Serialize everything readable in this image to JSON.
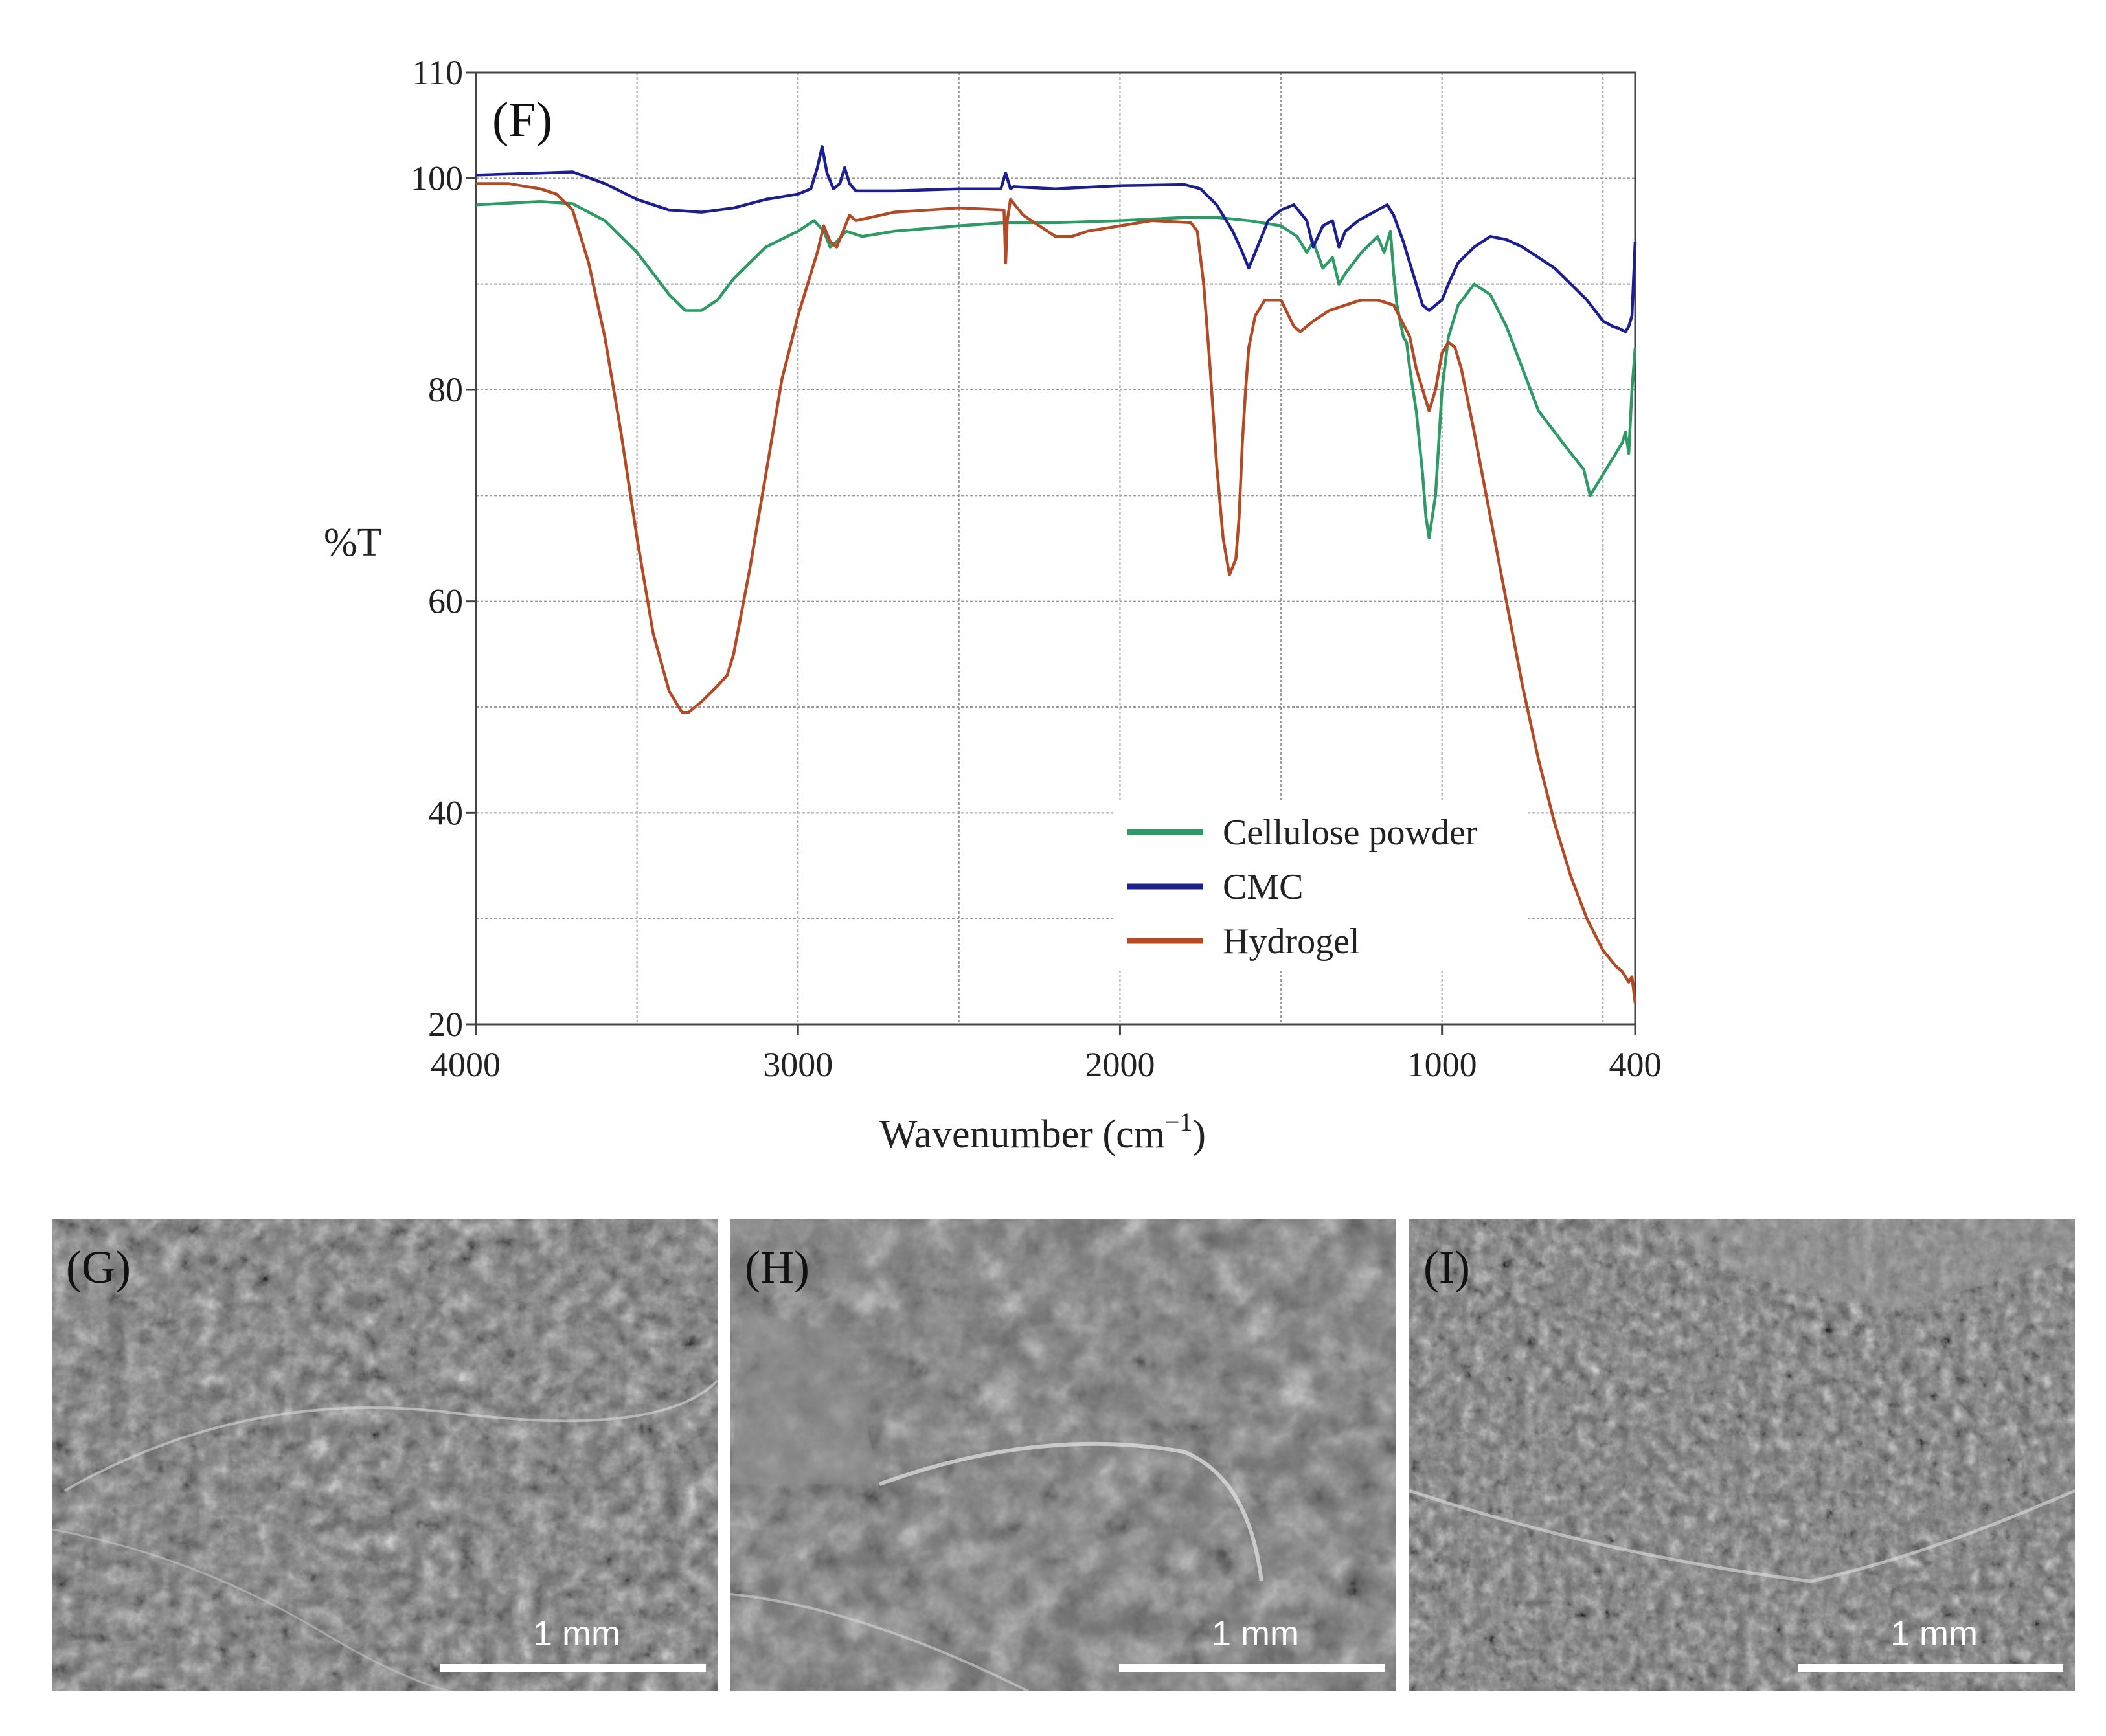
{
  "chart_data": {
    "type": "line",
    "panel_label": "(F)",
    "xlabel": "Wavenumber (cm",
    "xlabel_sup": "−1",
    "xlabel_close": ")",
    "ylabel": "%T",
    "xlim": [
      4000,
      400
    ],
    "ylim": [
      20,
      110
    ],
    "x_ticks": [
      4000,
      3000,
      2000,
      1000,
      400
    ],
    "y_ticks": [
      20,
      40,
      60,
      80,
      100,
      110
    ],
    "grid": true,
    "legend_position": "bottom-right",
    "series": [
      {
        "name": "Cellulose powder",
        "color": "#2e9a66",
        "x": [
          4000,
          3800,
          3700,
          3600,
          3500,
          3450,
          3400,
          3350,
          3300,
          3250,
          3200,
          3100,
          3000,
          2950,
          2920,
          2900,
          2880,
          2850,
          2800,
          2700,
          2500,
          2360,
          2200,
          2000,
          1800,
          1700,
          1600,
          1500,
          1450,
          1420,
          1400,
          1370,
          1340,
          1320,
          1300,
          1250,
          1200,
          1180,
          1160,
          1150,
          1140,
          1120,
          1110,
          1100,
          1080,
          1060,
          1050,
          1040,
          1020,
          1000,
          980,
          950,
          900,
          850,
          800,
          750,
          700,
          650,
          600,
          560,
          540,
          520,
          500,
          480,
          460,
          440,
          430,
          420,
          410,
          400
        ],
        "values": [
          97.5,
          97.8,
          97.6,
          96,
          93,
          91,
          89,
          87.5,
          87.5,
          88.5,
          90.5,
          93.5,
          95,
          96,
          95,
          93.5,
          94,
          95,
          94.5,
          95,
          95.5,
          95.8,
          95.8,
          96,
          96.3,
          96.3,
          96,
          95.5,
          94.5,
          93,
          94,
          91.5,
          92.5,
          90,
          91,
          93,
          94.5,
          93,
          95,
          91,
          88,
          85,
          84.5,
          82,
          78,
          72,
          68,
          66,
          70,
          80,
          85,
          88,
          90,
          89,
          86,
          82,
          78,
          76,
          74,
          72.5,
          70,
          71,
          72,
          73,
          74,
          75,
          76,
          74,
          80,
          84
        ]
      },
      {
        "name": "CMC",
        "color": "#1b1f8f",
        "x": [
          4000,
          3800,
          3700,
          3600,
          3500,
          3400,
          3300,
          3200,
          3100,
          3000,
          2960,
          2940,
          2925,
          2910,
          2890,
          2870,
          2855,
          2840,
          2820,
          2700,
          2500,
          2370,
          2355,
          2340,
          2330,
          2200,
          2000,
          1800,
          1750,
          1700,
          1650,
          1620,
          1600,
          1580,
          1540,
          1500,
          1460,
          1420,
          1400,
          1370,
          1340,
          1320,
          1300,
          1260,
          1200,
          1170,
          1150,
          1120,
          1100,
          1080,
          1060,
          1040,
          1020,
          1000,
          980,
          950,
          900,
          850,
          800,
          750,
          700,
          650,
          600,
          550,
          500,
          470,
          450,
          430,
          420,
          410,
          400
        ],
        "values": [
          100.3,
          100.5,
          100.6,
          99.5,
          98,
          97,
          96.8,
          97.2,
          98,
          98.5,
          99,
          101,
          103,
          100.5,
          99,
          99.5,
          101,
          99.5,
          98.8,
          98.8,
          99,
          99,
          100.5,
          99,
          99.2,
          99,
          99.3,
          99.4,
          99,
          97.5,
          95,
          93,
          91.5,
          93,
          96,
          97,
          97.5,
          96,
          93.5,
          95.5,
          96,
          93.5,
          95,
          96,
          97,
          97.5,
          96.5,
          94,
          92,
          90,
          88,
          87.5,
          88,
          88.5,
          90,
          92,
          93.5,
          94.5,
          94.2,
          93.5,
          92.5,
          91.5,
          90,
          88.5,
          86.5,
          86,
          85.8,
          85.5,
          86,
          87,
          94
        ]
      },
      {
        "name": "Hydrogel",
        "color": "#b24a26",
        "x": [
          4000,
          3900,
          3800,
          3750,
          3700,
          3650,
          3600,
          3550,
          3500,
          3450,
          3400,
          3360,
          3340,
          3300,
          3250,
          3220,
          3200,
          3150,
          3100,
          3050,
          3000,
          2960,
          2940,
          2920,
          2900,
          2880,
          2860,
          2840,
          2820,
          2700,
          2500,
          2360,
          2355,
          2350,
          2340,
          2300,
          2200,
          2150,
          2100,
          2000,
          1900,
          1780,
          1760,
          1740,
          1720,
          1700,
          1680,
          1660,
          1640,
          1630,
          1620,
          1610,
          1600,
          1580,
          1550,
          1500,
          1460,
          1440,
          1400,
          1350,
          1300,
          1250,
          1200,
          1150,
          1100,
          1080,
          1060,
          1050,
          1040,
          1020,
          1000,
          980,
          960,
          940,
          900,
          850,
          800,
          750,
          700,
          650,
          600,
          550,
          500,
          460,
          440,
          420,
          410,
          400
        ],
        "values": [
          99.5,
          99.5,
          99,
          98.5,
          97,
          92,
          85,
          76,
          66,
          57,
          51.5,
          49.5,
          49.5,
          50.5,
          52,
          53,
          55,
          63,
          72,
          81,
          87,
          91,
          93,
          95.5,
          94,
          93.5,
          95,
          96.5,
          96,
          96.8,
          97.2,
          97,
          92,
          96,
          98,
          96.5,
          94.5,
          94.5,
          95,
          95.5,
          96,
          95.8,
          95,
          90,
          82,
          73,
          66,
          62.5,
          64,
          68,
          75,
          80,
          84,
          87,
          88.5,
          88.5,
          86,
          85.5,
          86.5,
          87.5,
          88,
          88.5,
          88.5,
          88,
          85,
          82,
          80,
          79,
          78,
          80,
          83.5,
          84.5,
          84,
          82,
          76,
          68,
          60,
          52,
          45,
          39,
          34,
          30,
          27,
          25.5,
          25,
          24,
          24.5,
          22
        ]
      }
    ]
  },
  "sem_panels": [
    {
      "label": "(G)",
      "scalebar_label": "1 mm"
    },
    {
      "label": "(H)",
      "scalebar_label": "1 mm"
    },
    {
      "label": "(I)",
      "scalebar_label": "1 mm"
    }
  ]
}
